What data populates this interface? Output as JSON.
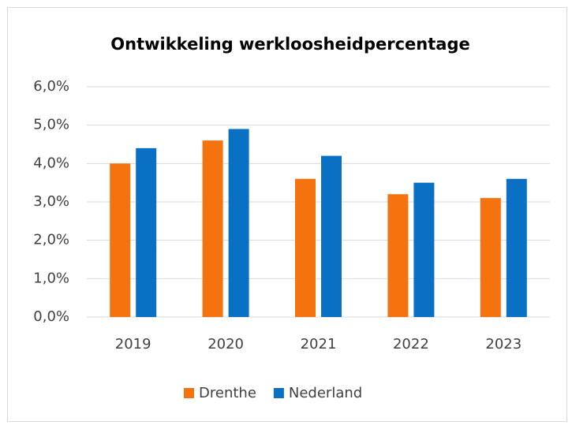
{
  "chart_data": {
    "type": "bar",
    "title": "Ontwikkeling werkloosheidpercentage",
    "categories": [
      "2019",
      "2020",
      "2021",
      "2022",
      "2023"
    ],
    "series": [
      {
        "name": "Drenthe",
        "color": "#f4730e",
        "values": [
          4.0,
          4.6,
          3.6,
          3.2,
          3.1
        ]
      },
      {
        "name": "Nederland",
        "color": "#0a70c4",
        "values": [
          4.4,
          4.9,
          4.2,
          3.5,
          3.6
        ]
      }
    ],
    "ylim": [
      0,
      6
    ],
    "yticks": [
      {
        "value": 0,
        "label": "0,0%"
      },
      {
        "value": 1,
        "label": "1,0%"
      },
      {
        "value": 2,
        "label": "2,0%"
      },
      {
        "value": 3,
        "label": "3,0%"
      },
      {
        "value": 4,
        "label": "4,0%"
      },
      {
        "value": 5,
        "label": "5,0%"
      },
      {
        "value": 6,
        "label": "6,0%"
      }
    ],
    "grid": true,
    "legend": "bottom"
  }
}
